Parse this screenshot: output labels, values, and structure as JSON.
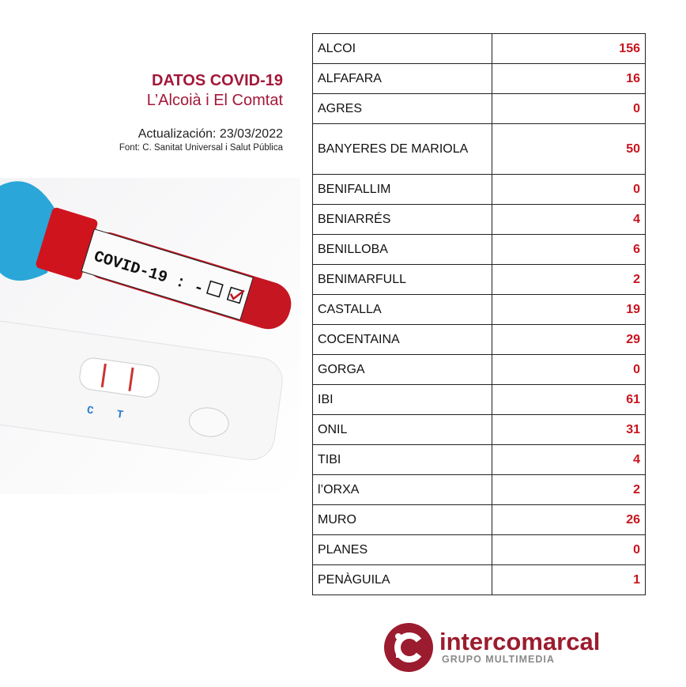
{
  "header": {
    "title": "DATOS COVID-19",
    "subtitle": "L’Alcoià i El Comtat",
    "updated": "Actualización: 23/03/2022",
    "source": "Font: C. Sanitat Universal i Salut Pública"
  },
  "photo": {
    "tube_label": "COVID-19 : -",
    "test_labels": [
      "C",
      "T"
    ]
  },
  "table": {
    "rows": [
      {
        "name": "ALCOI",
        "value": "156"
      },
      {
        "name": "ALFAFARA",
        "value": "16"
      },
      {
        "name": "AGRES",
        "value": "0"
      },
      {
        "name": "BANYERES DE MARIOLA",
        "value": "50"
      },
      {
        "name": "BENIFALLIM",
        "value": "0"
      },
      {
        "name": "BENIARRÉS",
        "value": "4"
      },
      {
        "name": "BENILLOBA",
        "value": "6"
      },
      {
        "name": "BENIMARFULL",
        "value": "2"
      },
      {
        "name": "CASTALLA",
        "value": "19"
      },
      {
        "name": "COCENTAINA",
        "value": "29"
      },
      {
        "name": "GORGA",
        "value": "0"
      },
      {
        "name": "IBI",
        "value": "61"
      },
      {
        "name": "ONIL",
        "value": "31"
      },
      {
        "name": "TIBI",
        "value": "4"
      },
      {
        "name": "l’ORXA",
        "value": "2"
      },
      {
        "name": "MURO",
        "value": "26"
      },
      {
        "name": "PLANES",
        "value": "0"
      },
      {
        "name": "PENÀGUILA",
        "value": "1"
      }
    ]
  },
  "logo": {
    "name": "intercomarcal",
    "tagline": "GRUPO MULTIMEDIA"
  },
  "colors": {
    "accent": "#a3183a",
    "value": "#c8141e",
    "logo": "#9b1c2e"
  }
}
